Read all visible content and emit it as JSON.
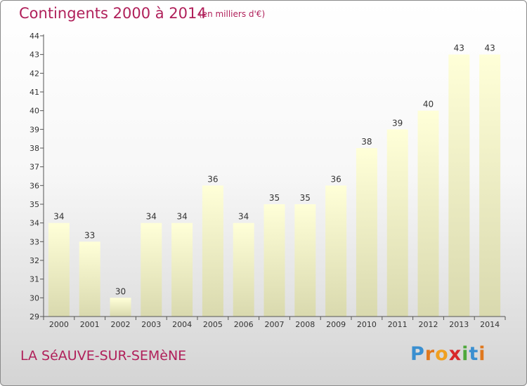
{
  "chart_data": {
    "type": "bar",
    "title": "Contingents 2000 à 2014",
    "subtitle": "(en milliers d'€)",
    "categories": [
      "2000",
      "2001",
      "2002",
      "2003",
      "2004",
      "2005",
      "2006",
      "2007",
      "2008",
      "2009",
      "2010",
      "2011",
      "2012",
      "2013",
      "2014"
    ],
    "values": [
      34,
      33,
      30,
      34,
      34,
      36,
      34,
      35,
      35,
      36,
      38,
      39,
      40,
      43,
      43
    ],
    "ylim": [
      29,
      44
    ],
    "yticks": [
      29,
      30,
      31,
      32,
      33,
      34,
      35,
      36,
      37,
      38,
      39,
      40,
      41,
      42,
      43,
      44
    ],
    "xlabel": "",
    "ylabel": "",
    "grid": false,
    "bar_color": "#f4f4c8"
  },
  "footer": {
    "town": "LA SéAUVE-SUR-SEMèNE",
    "logo_letters": [
      {
        "ch": "P",
        "color": "#3a8fd0"
      },
      {
        "ch": "r",
        "color": "#e0781e"
      },
      {
        "ch": "o",
        "color": "#f0a020"
      },
      {
        "ch": "x",
        "color": "#d8282a"
      },
      {
        "ch": "i",
        "color": "#4fa83c"
      },
      {
        "ch": "t",
        "color": "#3a8fd0"
      },
      {
        "ch": "i",
        "color": "#e0781e"
      }
    ]
  }
}
